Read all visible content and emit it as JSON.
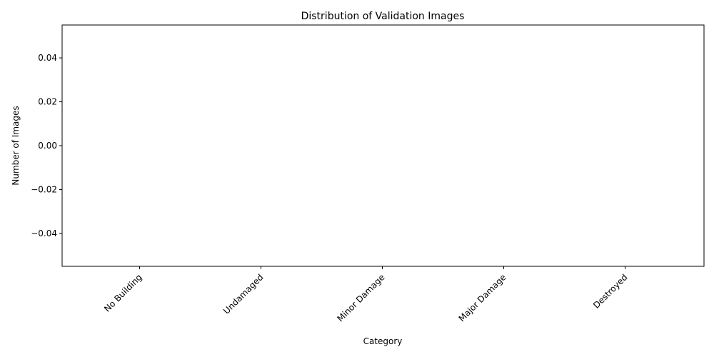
{
  "chart_data": {
    "type": "bar",
    "title": "Distribution of Validation Images",
    "xlabel": "Category",
    "ylabel": "Number of Images",
    "categories": [
      "No Building",
      "Undamaged",
      "Minor Damage",
      "Major Damage",
      "Destroyed"
    ],
    "values": [
      0,
      0,
      0,
      0,
      0
    ],
    "ylim": [
      -0.055,
      0.055
    ],
    "yticks": [
      -0.04,
      -0.02,
      0.0,
      0.02,
      0.04
    ],
    "ytick_labels": [
      "−0.04",
      "−0.02",
      "0.00",
      "0.02",
      "0.04"
    ],
    "xtick_rotation": 45,
    "grid": false,
    "legend": "none",
    "bar_color": "#1f77b4"
  }
}
